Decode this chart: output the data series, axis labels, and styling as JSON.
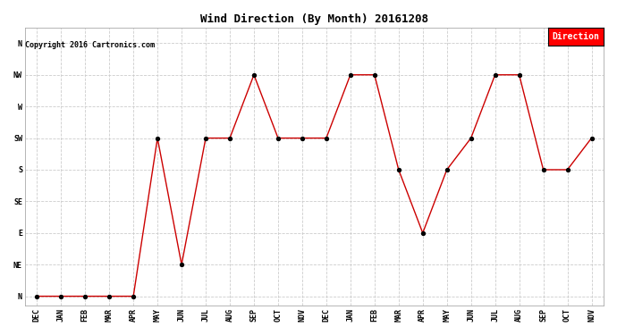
{
  "title": "Wind Direction (By Month) 20161208",
  "copyright_text": "Copyright 2016 Cartronics.com",
  "legend_label": "Direction",
  "legend_bg": "#ff0000",
  "legend_text_color": "#ffffff",
  "x_labels": [
    "DEC",
    "JAN",
    "FEB",
    "MAR",
    "APR",
    "MAY",
    "JUN",
    "JUL",
    "AUG",
    "SEP",
    "OCT",
    "NOV",
    "DEC",
    "JAN",
    "FEB",
    "MAR",
    "APR",
    "MAY",
    "JUN",
    "JUL",
    "AUG",
    "SEP",
    "OCT",
    "NOV"
  ],
  "y_labels": [
    "N",
    "NE",
    "E",
    "SE",
    "S",
    "SW",
    "W",
    "NW",
    "N"
  ],
  "y_values": [
    0,
    1,
    2,
    3,
    4,
    5,
    6,
    7,
    8
  ],
  "data_values": [
    0,
    0,
    0,
    0,
    0,
    5,
    1,
    5,
    5,
    7,
    5,
    5,
    5,
    7,
    7,
    4,
    2,
    4,
    5,
    7,
    7,
    4,
    4,
    5
  ],
  "line_color": "#cc0000",
  "marker_color": "#000000",
  "background_color": "#ffffff",
  "grid_color": "#cccccc",
  "title_fontsize": 9,
  "tick_fontsize": 6,
  "copyright_fontsize": 6,
  "legend_fontsize": 7
}
